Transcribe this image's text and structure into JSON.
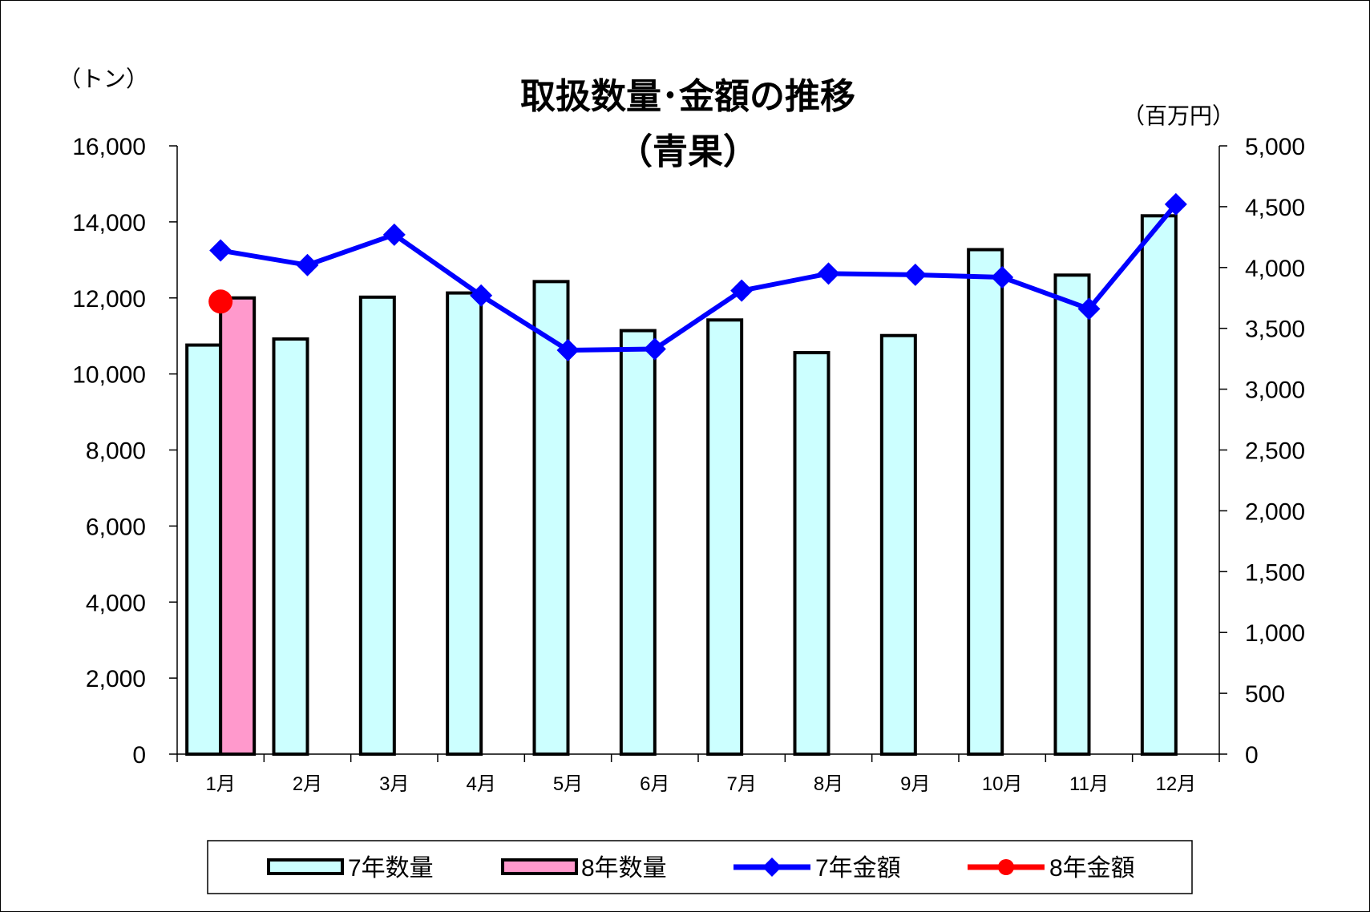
{
  "chart_data": {
    "type": "bar",
    "title": "取扱数量･金額の推移",
    "subtitle": "（青果）",
    "y_left_unit": "（トン）",
    "y_right_unit": "（百万円）",
    "categories": [
      "1月",
      "2月",
      "3月",
      "4月",
      "5月",
      "6月",
      "7月",
      "8月",
      "9月",
      "10月",
      "11月",
      "12月"
    ],
    "y_left_range": [
      0,
      16000
    ],
    "y_left_ticks": [
      "0",
      "2,000",
      "4,000",
      "6,000",
      "8,000",
      "10,000",
      "12,000",
      "14,000",
      "16,000"
    ],
    "y_right_range": [
      0,
      5000
    ],
    "y_right_ticks": [
      "0",
      "500",
      "1,000",
      "1,500",
      "2,000",
      "2,500",
      "3,000",
      "3,500",
      "4,000",
      "4,500",
      "5,000"
    ],
    "grid": false,
    "legend_position": "bottom",
    "series": [
      {
        "name": "7年数量",
        "kind": "bar",
        "axis": "left",
        "color": "#ccffff",
        "values": [
          10760,
          10920,
          12020,
          12130,
          12430,
          11140,
          11420,
          10560,
          11010,
          13270,
          12600,
          14160
        ]
      },
      {
        "name": "8年数量",
        "kind": "bar",
        "axis": "left",
        "color": "#ff99cc",
        "values": [
          12000,
          null,
          null,
          null,
          null,
          null,
          null,
          null,
          null,
          null,
          null,
          null
        ]
      },
      {
        "name": "7年金額",
        "kind": "line",
        "axis": "right",
        "color": "#0000ff",
        "marker": "diamond",
        "values": [
          4140,
          4020,
          4270,
          3770,
          3320,
          3330,
          3810,
          3950,
          3940,
          3920,
          3660,
          4520
        ]
      },
      {
        "name": "8年金額",
        "kind": "line",
        "axis": "right",
        "color": "#ff0000",
        "marker": "circle",
        "values": [
          3720,
          null,
          null,
          null,
          null,
          null,
          null,
          null,
          null,
          null,
          null,
          null
        ]
      }
    ]
  }
}
